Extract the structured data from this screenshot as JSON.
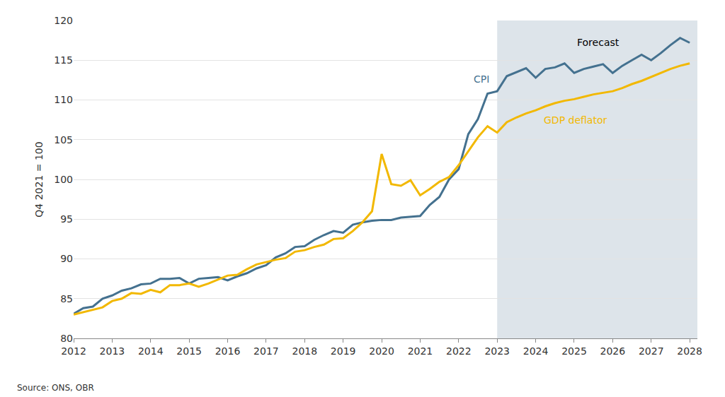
{
  "chart_data": {
    "type": "line",
    "y_label": "Q4 2021 = 100",
    "source": "Source: ONS, OBR",
    "forecast": {
      "label": "Forecast",
      "start": 2023
    },
    "x": [
      2012,
      2012.25,
      2012.5,
      2012.75,
      2013,
      2013.25,
      2013.5,
      2013.75,
      2014,
      2014.25,
      2014.5,
      2014.75,
      2015,
      2015.25,
      2015.5,
      2015.75,
      2016,
      2016.25,
      2016.5,
      2016.75,
      2017,
      2017.25,
      2017.5,
      2017.75,
      2018,
      2018.25,
      2018.5,
      2018.75,
      2019,
      2019.25,
      2019.5,
      2019.75,
      2020,
      2020.25,
      2020.5,
      2020.75,
      2021,
      2021.25,
      2021.5,
      2021.75,
      2022,
      2022.25,
      2022.5,
      2022.75,
      2023,
      2023.25,
      2023.5,
      2023.75,
      2024,
      2024.25,
      2024.5,
      2024.75,
      2025,
      2025.25,
      2025.5,
      2025.75,
      2026,
      2026.25,
      2026.5,
      2026.75,
      2027,
      2027.25,
      2027.5,
      2027.75,
      2028
    ],
    "series": [
      {
        "name": "CPI",
        "color": "#44718f",
        "values": [
          83.1,
          83.8,
          84.0,
          85.0,
          85.4,
          86.0,
          86.3,
          86.8,
          86.9,
          87.5,
          87.5,
          87.6,
          86.9,
          87.5,
          87.6,
          87.7,
          87.3,
          87.8,
          88.2,
          88.8,
          89.2,
          90.2,
          90.7,
          91.5,
          91.6,
          92.4,
          93.0,
          93.5,
          93.3,
          94.3,
          94.6,
          94.8,
          94.9,
          94.9,
          95.2,
          95.3,
          95.4,
          96.8,
          97.8,
          100.0,
          101.3,
          105.7,
          107.6,
          110.8,
          111.1,
          113.0,
          113.5,
          114.0,
          112.8,
          113.9,
          114.1,
          114.6,
          113.4,
          113.9,
          114.2,
          114.5,
          113.4,
          114.3,
          115.0,
          115.7,
          115.0,
          115.9,
          116.9,
          117.8,
          117.2
        ]
      },
      {
        "name": "GDP deflator",
        "color": "#f2b800",
        "values": [
          83.0,
          83.3,
          83.6,
          83.9,
          84.7,
          85.0,
          85.7,
          85.6,
          86.1,
          85.8,
          86.7,
          86.7,
          86.9,
          86.5,
          86.9,
          87.4,
          87.9,
          88.0,
          88.7,
          89.3,
          89.6,
          89.9,
          90.1,
          90.9,
          91.1,
          91.5,
          91.8,
          92.5,
          92.6,
          93.5,
          94.6,
          96.0,
          103.2,
          99.4,
          99.2,
          99.9,
          98.0,
          98.8,
          99.7,
          100.3,
          101.8,
          103.6,
          105.3,
          106.7,
          105.9,
          107.2,
          107.8,
          108.3,
          108.7,
          109.2,
          109.6,
          109.9,
          110.1,
          110.4,
          110.7,
          110.9,
          111.1,
          111.5,
          112.0,
          112.4,
          112.9,
          113.4,
          113.9,
          114.3,
          114.6
        ]
      }
    ],
    "xlim": [
      2012,
      2028.2
    ],
    "xticks": [
      2012,
      2013,
      2014,
      2015,
      2016,
      2017,
      2018,
      2019,
      2020,
      2021,
      2022,
      2023,
      2024,
      2025,
      2026,
      2027,
      2028
    ],
    "ylim": [
      80,
      120
    ],
    "yticks": [
      80,
      85,
      90,
      95,
      100,
      105,
      110,
      115,
      120
    ],
    "grid": true
  }
}
